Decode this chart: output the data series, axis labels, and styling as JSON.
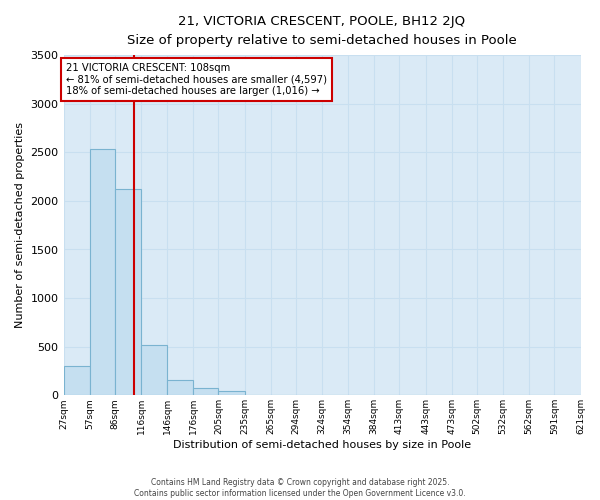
{
  "title1": "21, VICTORIA CRESCENT, POOLE, BH12 2JQ",
  "title2": "Size of property relative to semi-detached houses in Poole",
  "xlabel": "Distribution of semi-detached houses by size in Poole",
  "ylabel": "Number of semi-detached properties",
  "bin_labels": [
    "27sqm",
    "57sqm",
    "86sqm",
    "116sqm",
    "146sqm",
    "176sqm",
    "205sqm",
    "235sqm",
    "265sqm",
    "294sqm",
    "324sqm",
    "354sqm",
    "384sqm",
    "413sqm",
    "443sqm",
    "473sqm",
    "502sqm",
    "532sqm",
    "562sqm",
    "591sqm",
    "621sqm"
  ],
  "bin_edges": [
    27,
    57,
    86,
    116,
    146,
    176,
    205,
    235,
    265,
    294,
    324,
    354,
    384,
    413,
    443,
    473,
    502,
    532,
    562,
    591,
    621
  ],
  "bar_heights": [
    300,
    2530,
    2120,
    520,
    160,
    70,
    40,
    0,
    0,
    0,
    0,
    0,
    0,
    0,
    0,
    0,
    0,
    0,
    0,
    0
  ],
  "bar_color": "#c5dff0",
  "bar_edge_color": "#7ab3d0",
  "grid_color": "#c8dff0",
  "plot_bg_color": "#daeaf6",
  "figure_bg_color": "#ffffff",
  "red_line_x": 108,
  "annotation_title": "21 VICTORIA CRESCENT: 108sqm",
  "annotation_line1": "← 81% of semi-detached houses are smaller (4,597)",
  "annotation_line2": "18% of semi-detached houses are larger (1,016) →",
  "annotation_box_color": "#cc0000",
  "ylim": [
    0,
    3500
  ],
  "yticks": [
    0,
    500,
    1000,
    1500,
    2000,
    2500,
    3000,
    3500
  ],
  "footer1": "Contains HM Land Registry data © Crown copyright and database right 2025.",
  "footer2": "Contains public sector information licensed under the Open Government Licence v3.0."
}
